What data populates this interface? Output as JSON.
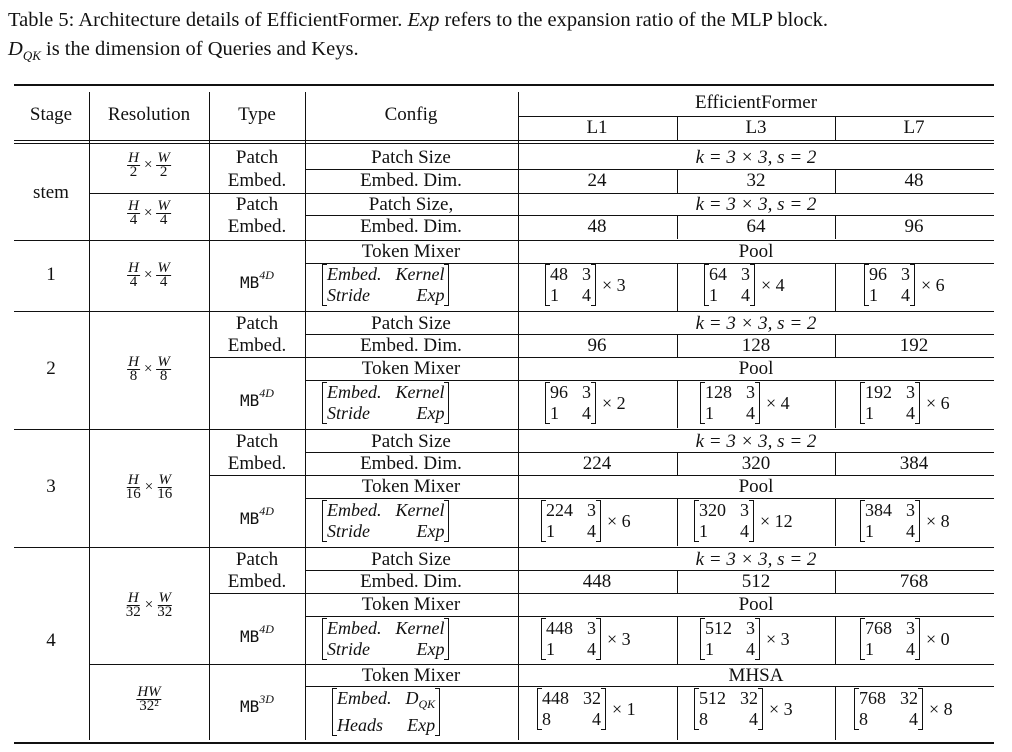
{
  "caption": {
    "label": "Table 5:",
    "text_a": "Architecture details of EfficientFormer.",
    "exp": "Exp",
    "text_b": "refers to the expansion ratio of the MLP block.",
    "dqk_main": "D",
    "dqk_sub": "QK",
    "text_c": "is the dimension of Queries and Keys."
  },
  "header": {
    "stage": "Stage",
    "resolution": "Resolution",
    "type": "Type",
    "config": "Config",
    "group": "EfficientFormer",
    "l1": "L1",
    "l3": "L3",
    "l7": "L7"
  },
  "labels": {
    "patch": "Patch",
    "embed": "Embed.",
    "patch_size": "Patch Size",
    "patch_size_comma": "Patch Size,",
    "embed_dim": "Embed. Dim.",
    "token_mixer": "Token Mixer",
    "ps_value": "k = 3 × 3, s = 2",
    "pool": "Pool",
    "mhsa": "MHSA",
    "mb": "MB",
    "sup4d": "4D",
    "sup3d": "3D",
    "times": "×"
  },
  "matrix_labels": {
    "embed": "Embed.",
    "kernel": "Kernel",
    "stride": "Stride",
    "exp": "Exp",
    "heads": "Heads",
    "dqk": "DQK"
  },
  "stages": {
    "stem": "stem",
    "s1": "1",
    "s2": "2",
    "s3": "3",
    "s4": "4"
  },
  "resolutions": {
    "r2": {
      "hn": "H",
      "hd": "2",
      "wn": "W",
      "wd": "2"
    },
    "r4": {
      "hn": "H",
      "hd": "4",
      "wn": "W",
      "wd": "4"
    },
    "r4b": {
      "hn": "H",
      "hd": "4",
      "wn": "W",
      "wd": "4"
    },
    "r8": {
      "hn": "H",
      "hd": "8",
      "wn": "W",
      "wd": "8"
    },
    "r16": {
      "hn": "H",
      "hd": "16",
      "wn": "W",
      "wd": "16"
    },
    "r32": {
      "hn": "H",
      "hd": "32",
      "wn": "W",
      "wd": "32"
    },
    "rhw": {
      "n": "HW",
      "d": "32²"
    }
  },
  "embed_dims": {
    "stem1": [
      "24",
      "32",
      "48"
    ],
    "stem2": [
      "48",
      "64",
      "96"
    ],
    "s2": [
      "96",
      "128",
      "192"
    ],
    "s3": [
      "224",
      "320",
      "384"
    ],
    "s4": [
      "448",
      "512",
      "768"
    ]
  },
  "mixers": {
    "s1": [
      {
        "a": "48",
        "b": "3",
        "c": "1",
        "d": "4",
        "n": "× 3"
      },
      {
        "a": "64",
        "b": "3",
        "c": "1",
        "d": "4",
        "n": "× 4"
      },
      {
        "a": "96",
        "b": "3",
        "c": "1",
        "d": "4",
        "n": "× 6"
      }
    ],
    "s2": [
      {
        "a": "96",
        "b": "3",
        "c": "1",
        "d": "4",
        "n": "× 2"
      },
      {
        "a": "128",
        "b": "3",
        "c": "1",
        "d": "4",
        "n": "× 4"
      },
      {
        "a": "192",
        "b": "3",
        "c": "1",
        "d": "4",
        "n": "× 6"
      }
    ],
    "s3": [
      {
        "a": "224",
        "b": "3",
        "c": "1",
        "d": "4",
        "n": "× 6"
      },
      {
        "a": "320",
        "b": "3",
        "c": "1",
        "d": "4",
        "n": "× 12"
      },
      {
        "a": "384",
        "b": "3",
        "c": "1",
        "d": "4",
        "n": "× 8"
      }
    ],
    "s4": [
      {
        "a": "448",
        "b": "3",
        "c": "1",
        "d": "4",
        "n": "× 3"
      },
      {
        "a": "512",
        "b": "3",
        "c": "1",
        "d": "4",
        "n": "× 3"
      },
      {
        "a": "768",
        "b": "3",
        "c": "1",
        "d": "4",
        "n": "× 0"
      }
    ],
    "s4m": [
      {
        "a": "448",
        "b": "32",
        "c": "8",
        "d": "4",
        "n": "× 1"
      },
      {
        "a": "512",
        "b": "32",
        "c": "8",
        "d": "4",
        "n": "× 3"
      },
      {
        "a": "768",
        "b": "32",
        "c": "8",
        "d": "4",
        "n": "× 8"
      }
    ]
  }
}
